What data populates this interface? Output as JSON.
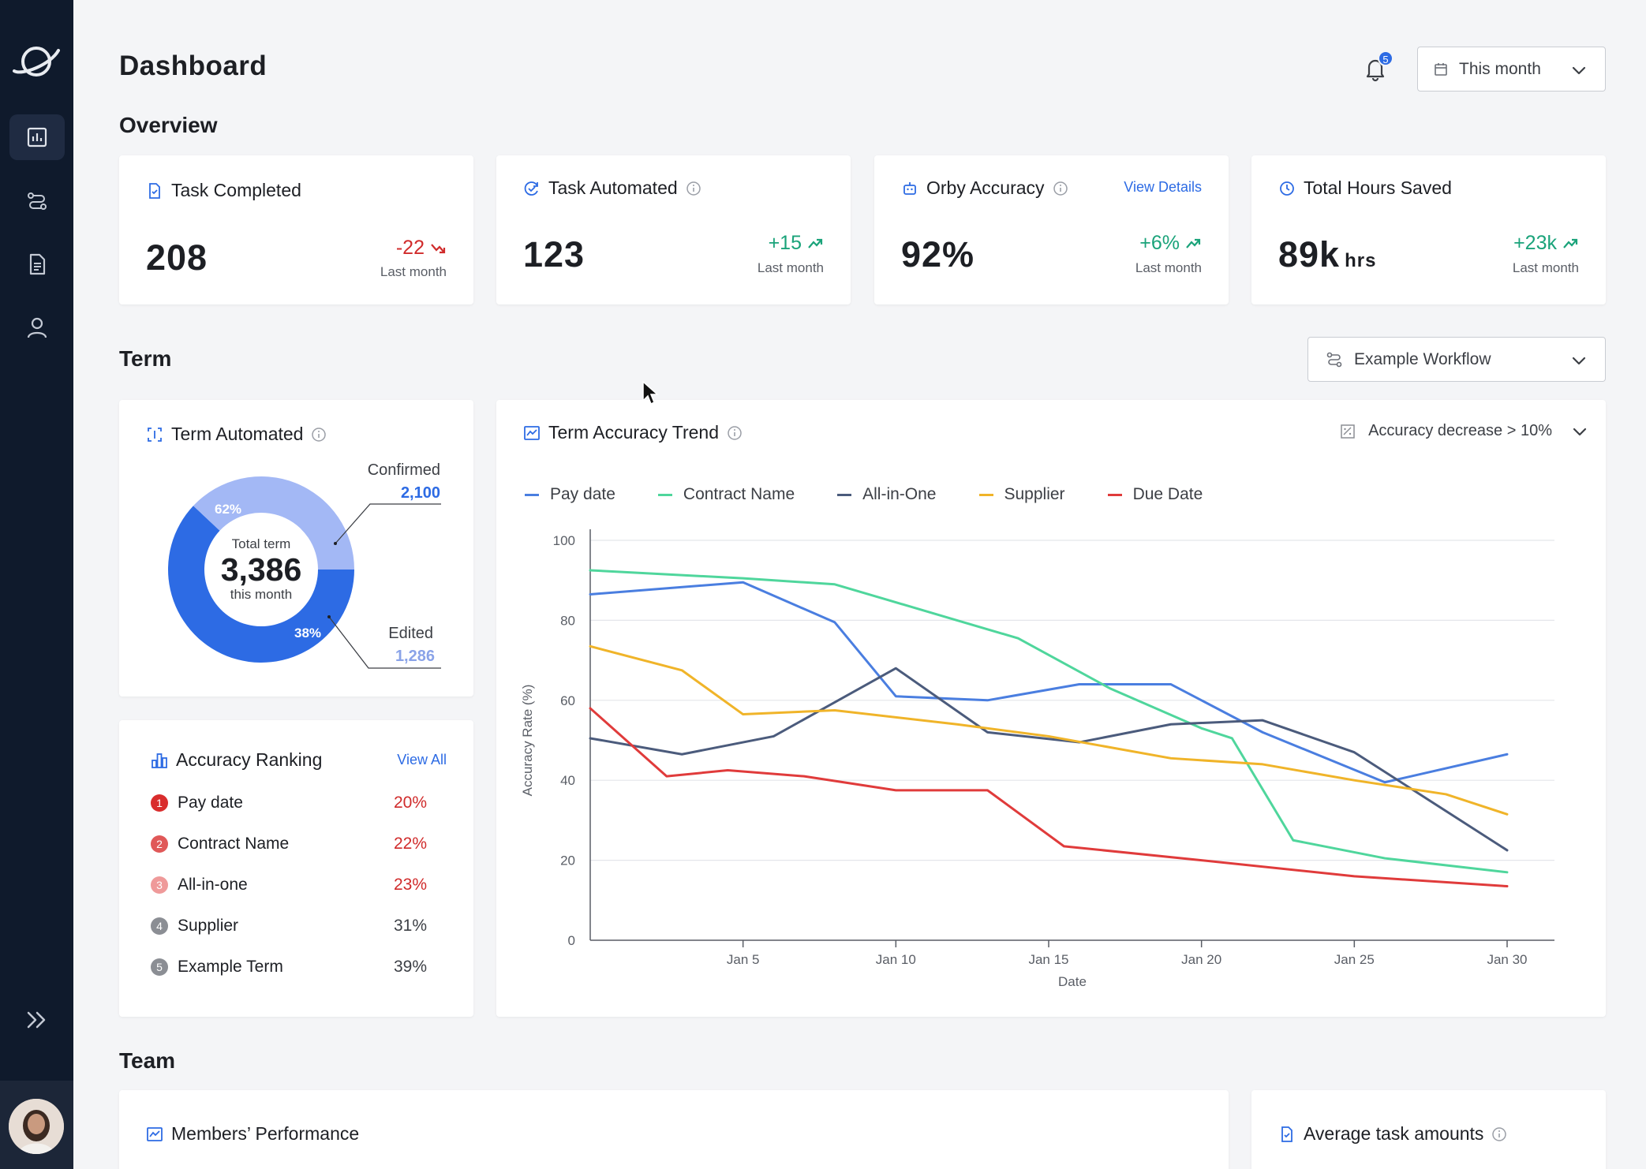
{
  "sidebar": {
    "nav": [
      "analytics",
      "workflows",
      "documents",
      "users"
    ],
    "active": "analytics"
  },
  "header": {
    "title": "Dashboard",
    "notifications_count": "5",
    "date_range": "This month"
  },
  "overview": {
    "title": "Overview",
    "cards": [
      {
        "title": "Task Completed",
        "value": "208",
        "unit": "",
        "delta": "-22",
        "delta_dir": "down",
        "sub": "Last month"
      },
      {
        "title": "Task Automated",
        "value": "123",
        "unit": "",
        "delta": "+15",
        "delta_dir": "up",
        "sub": "Last month"
      },
      {
        "title": "Orby Accuracy",
        "value": "92%",
        "unit": "",
        "delta": "+6%",
        "delta_dir": "up",
        "sub": "Last month",
        "link": "View Details"
      },
      {
        "title": "Total Hours Saved",
        "value": "89k",
        "unit": "hrs",
        "delta": "+23k",
        "delta_dir": "up",
        "sub": "Last month"
      }
    ]
  },
  "term": {
    "title": "Term",
    "workflow": "Example Workflow",
    "automated": {
      "title": "Term Automated",
      "center_label": "Total term",
      "center_value": "3,386",
      "center_sub": "this month",
      "confirmed_label": "Confirmed",
      "confirmed_value": "2,100",
      "confirmed_pct": "62%",
      "edited_label": "Edited",
      "edited_value": "1,286",
      "edited_pct": "38%",
      "confirmed_share": 0.62
    },
    "ranking": {
      "title": "Accuracy Ranking",
      "link": "View All",
      "items": [
        {
          "rank": "1",
          "name": "Pay date",
          "value": "20%",
          "color": "#d92d2d",
          "val_color": "#d02b2b"
        },
        {
          "rank": "2",
          "name": "Contract Name",
          "value": "22%",
          "color": "#e05858",
          "val_color": "#d02b2b"
        },
        {
          "rank": "3",
          "name": "All-in-one",
          "value": "23%",
          "color": "#ef9a9a",
          "val_color": "#d02b2b"
        },
        {
          "rank": "4",
          "name": "Supplier",
          "value": "31%",
          "color": "#8b8e94",
          "val_color": "#3c3f45"
        },
        {
          "rank": "5",
          "name": "Example Term",
          "value": "39%",
          "color": "#8b8e94",
          "val_color": "#3c3f45"
        }
      ]
    },
    "trend": {
      "title": "Term Accuracy Trend",
      "filter": "Accuracy decrease > 10%"
    }
  },
  "team": {
    "title": "Team",
    "members_title": "Members’ Performance",
    "avg_title": "Average task amounts"
  },
  "chart_data": {
    "type": "line",
    "xlabel": "Date",
    "ylabel": "Accuracy Rate (%)",
    "ylim": [
      0,
      100
    ],
    "yticks": [
      "0",
      "20",
      "40",
      "60",
      "80",
      "100"
    ],
    "xlim": [
      0,
      30
    ],
    "xticks": [
      {
        "x": 5,
        "label": "Jan 5"
      },
      {
        "x": 10,
        "label": "Jan 10"
      },
      {
        "x": 15,
        "label": "Jan 15"
      },
      {
        "x": 20,
        "label": "Jan 20"
      },
      {
        "x": 25,
        "label": "Jan 25"
      },
      {
        "x": 30,
        "label": "Jan 30"
      }
    ],
    "legend_position": "top",
    "grid": true,
    "series": [
      {
        "name": "Pay date",
        "color": "#4a7ee0",
        "points": [
          [
            0,
            86.5
          ],
          [
            5,
            89.5
          ],
          [
            8,
            79.5
          ],
          [
            10,
            61
          ],
          [
            13,
            60
          ],
          [
            16,
            64
          ],
          [
            19,
            64
          ],
          [
            22,
            52
          ],
          [
            26,
            39.5
          ],
          [
            30,
            46.5
          ]
        ]
      },
      {
        "name": "Contract Name",
        "color": "#4fd69c",
        "points": [
          [
            0,
            92.5
          ],
          [
            5,
            90.5
          ],
          [
            8,
            89
          ],
          [
            12,
            80
          ],
          [
            14,
            75.5
          ],
          [
            17,
            63
          ],
          [
            20,
            53
          ],
          [
            21,
            50.5
          ],
          [
            23,
            25
          ],
          [
            26,
            20.5
          ],
          [
            30,
            17
          ]
        ]
      },
      {
        "name": "All-in-One",
        "color": "#4b5b7c",
        "points": [
          [
            0,
            50.5
          ],
          [
            3,
            46.5
          ],
          [
            6,
            51
          ],
          [
            10,
            68
          ],
          [
            13,
            52
          ],
          [
            16,
            49.5
          ],
          [
            19,
            54
          ],
          [
            22,
            55
          ],
          [
            25,
            47
          ],
          [
            30,
            22.5
          ]
        ]
      },
      {
        "name": "Supplier",
        "color": "#f0b429",
        "points": [
          [
            0,
            73.5
          ],
          [
            3,
            67.5
          ],
          [
            5,
            56.5
          ],
          [
            8,
            57.5
          ],
          [
            12,
            54
          ],
          [
            15,
            51
          ],
          [
            19,
            45.5
          ],
          [
            22,
            44
          ],
          [
            25,
            40
          ],
          [
            28,
            36.5
          ],
          [
            30,
            31.5
          ]
        ]
      },
      {
        "name": "Due Date",
        "color": "#e03b3b",
        "points": [
          [
            0,
            58
          ],
          [
            2.5,
            41
          ],
          [
            4.5,
            42.5
          ],
          [
            7,
            41
          ],
          [
            10,
            37.5
          ],
          [
            13,
            37.5
          ],
          [
            15.5,
            23.5
          ],
          [
            20,
            20
          ],
          [
            25,
            16
          ],
          [
            30,
            13.5
          ]
        ]
      }
    ]
  }
}
